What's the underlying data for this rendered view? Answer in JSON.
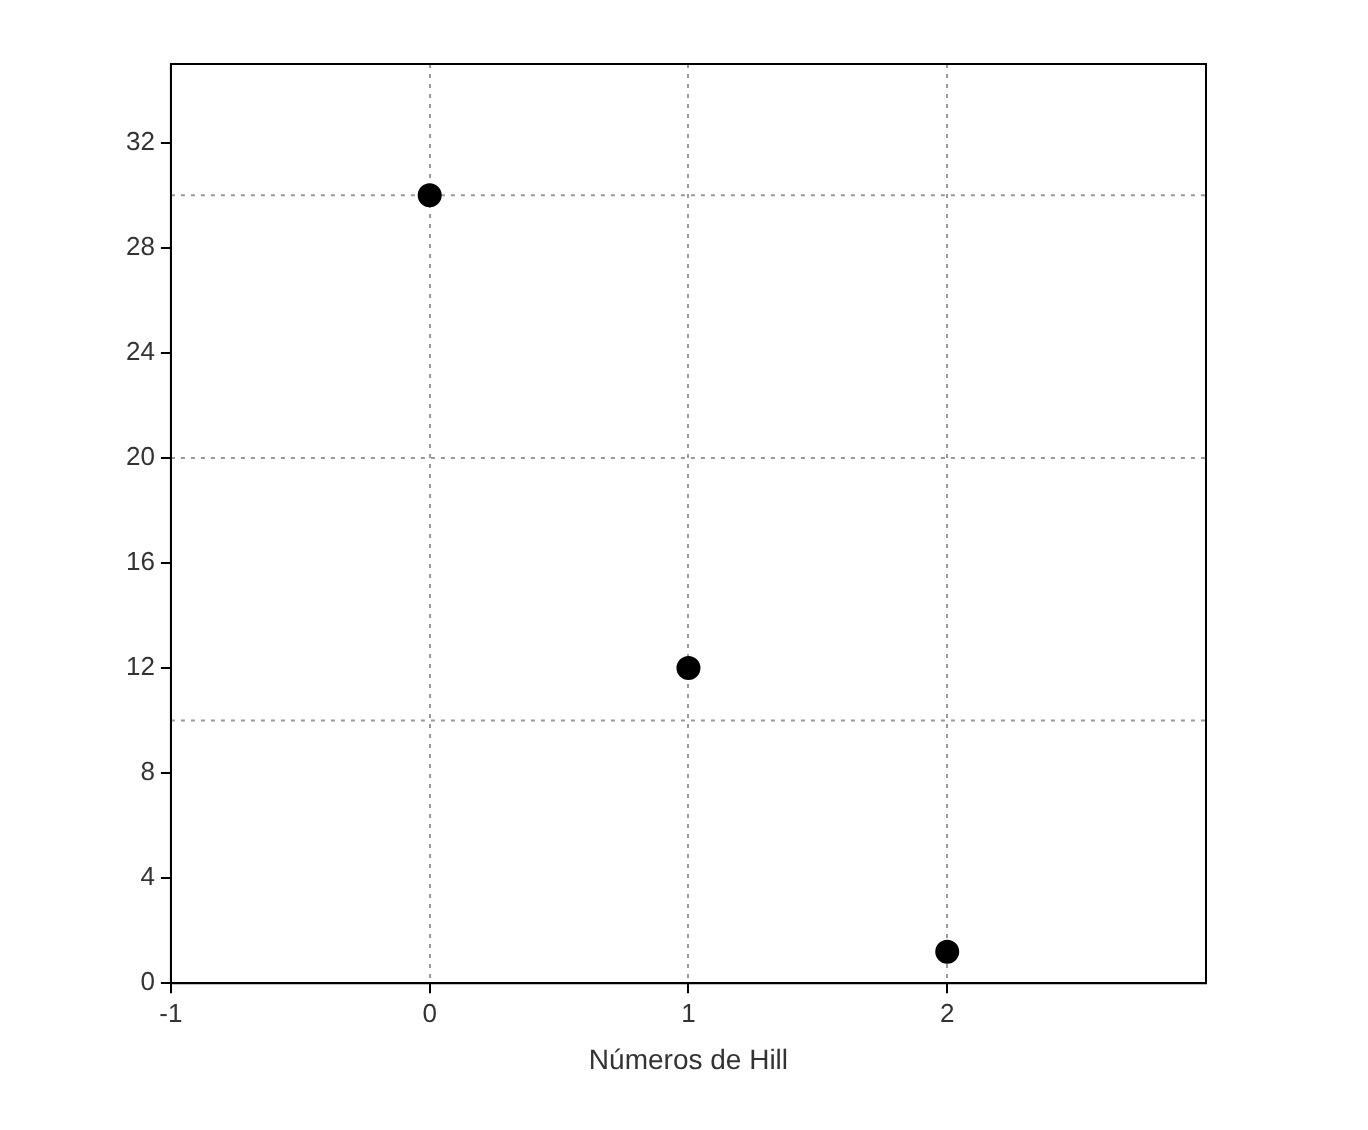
{
  "chart_data": {
    "type": "scatter",
    "xlabel": "Números de Hill",
    "x": [
      0,
      1,
      2
    ],
    "values": [
      30,
      12,
      1.2
    ],
    "color": "#000000",
    "marker": "circle",
    "xlim": [
      -1,
      3
    ],
    "xticks": [
      -1,
      0,
      1,
      2
    ],
    "ylim": [
      0,
      35
    ],
    "yticks": [
      0,
      4,
      8,
      12,
      16,
      20,
      24,
      28,
      32
    ],
    "grid": "x",
    "legend": false,
    "ref_lines": [
      {
        "axis": "y",
        "value": 10,
        "color": "#999999",
        "line_style": "dotted"
      },
      {
        "axis": "y",
        "value": 20,
        "color": "#999999",
        "line_style": "dotted"
      },
      {
        "axis": "y",
        "value": 30,
        "color": "#999999",
        "line_style": "dotted"
      }
    ]
  }
}
